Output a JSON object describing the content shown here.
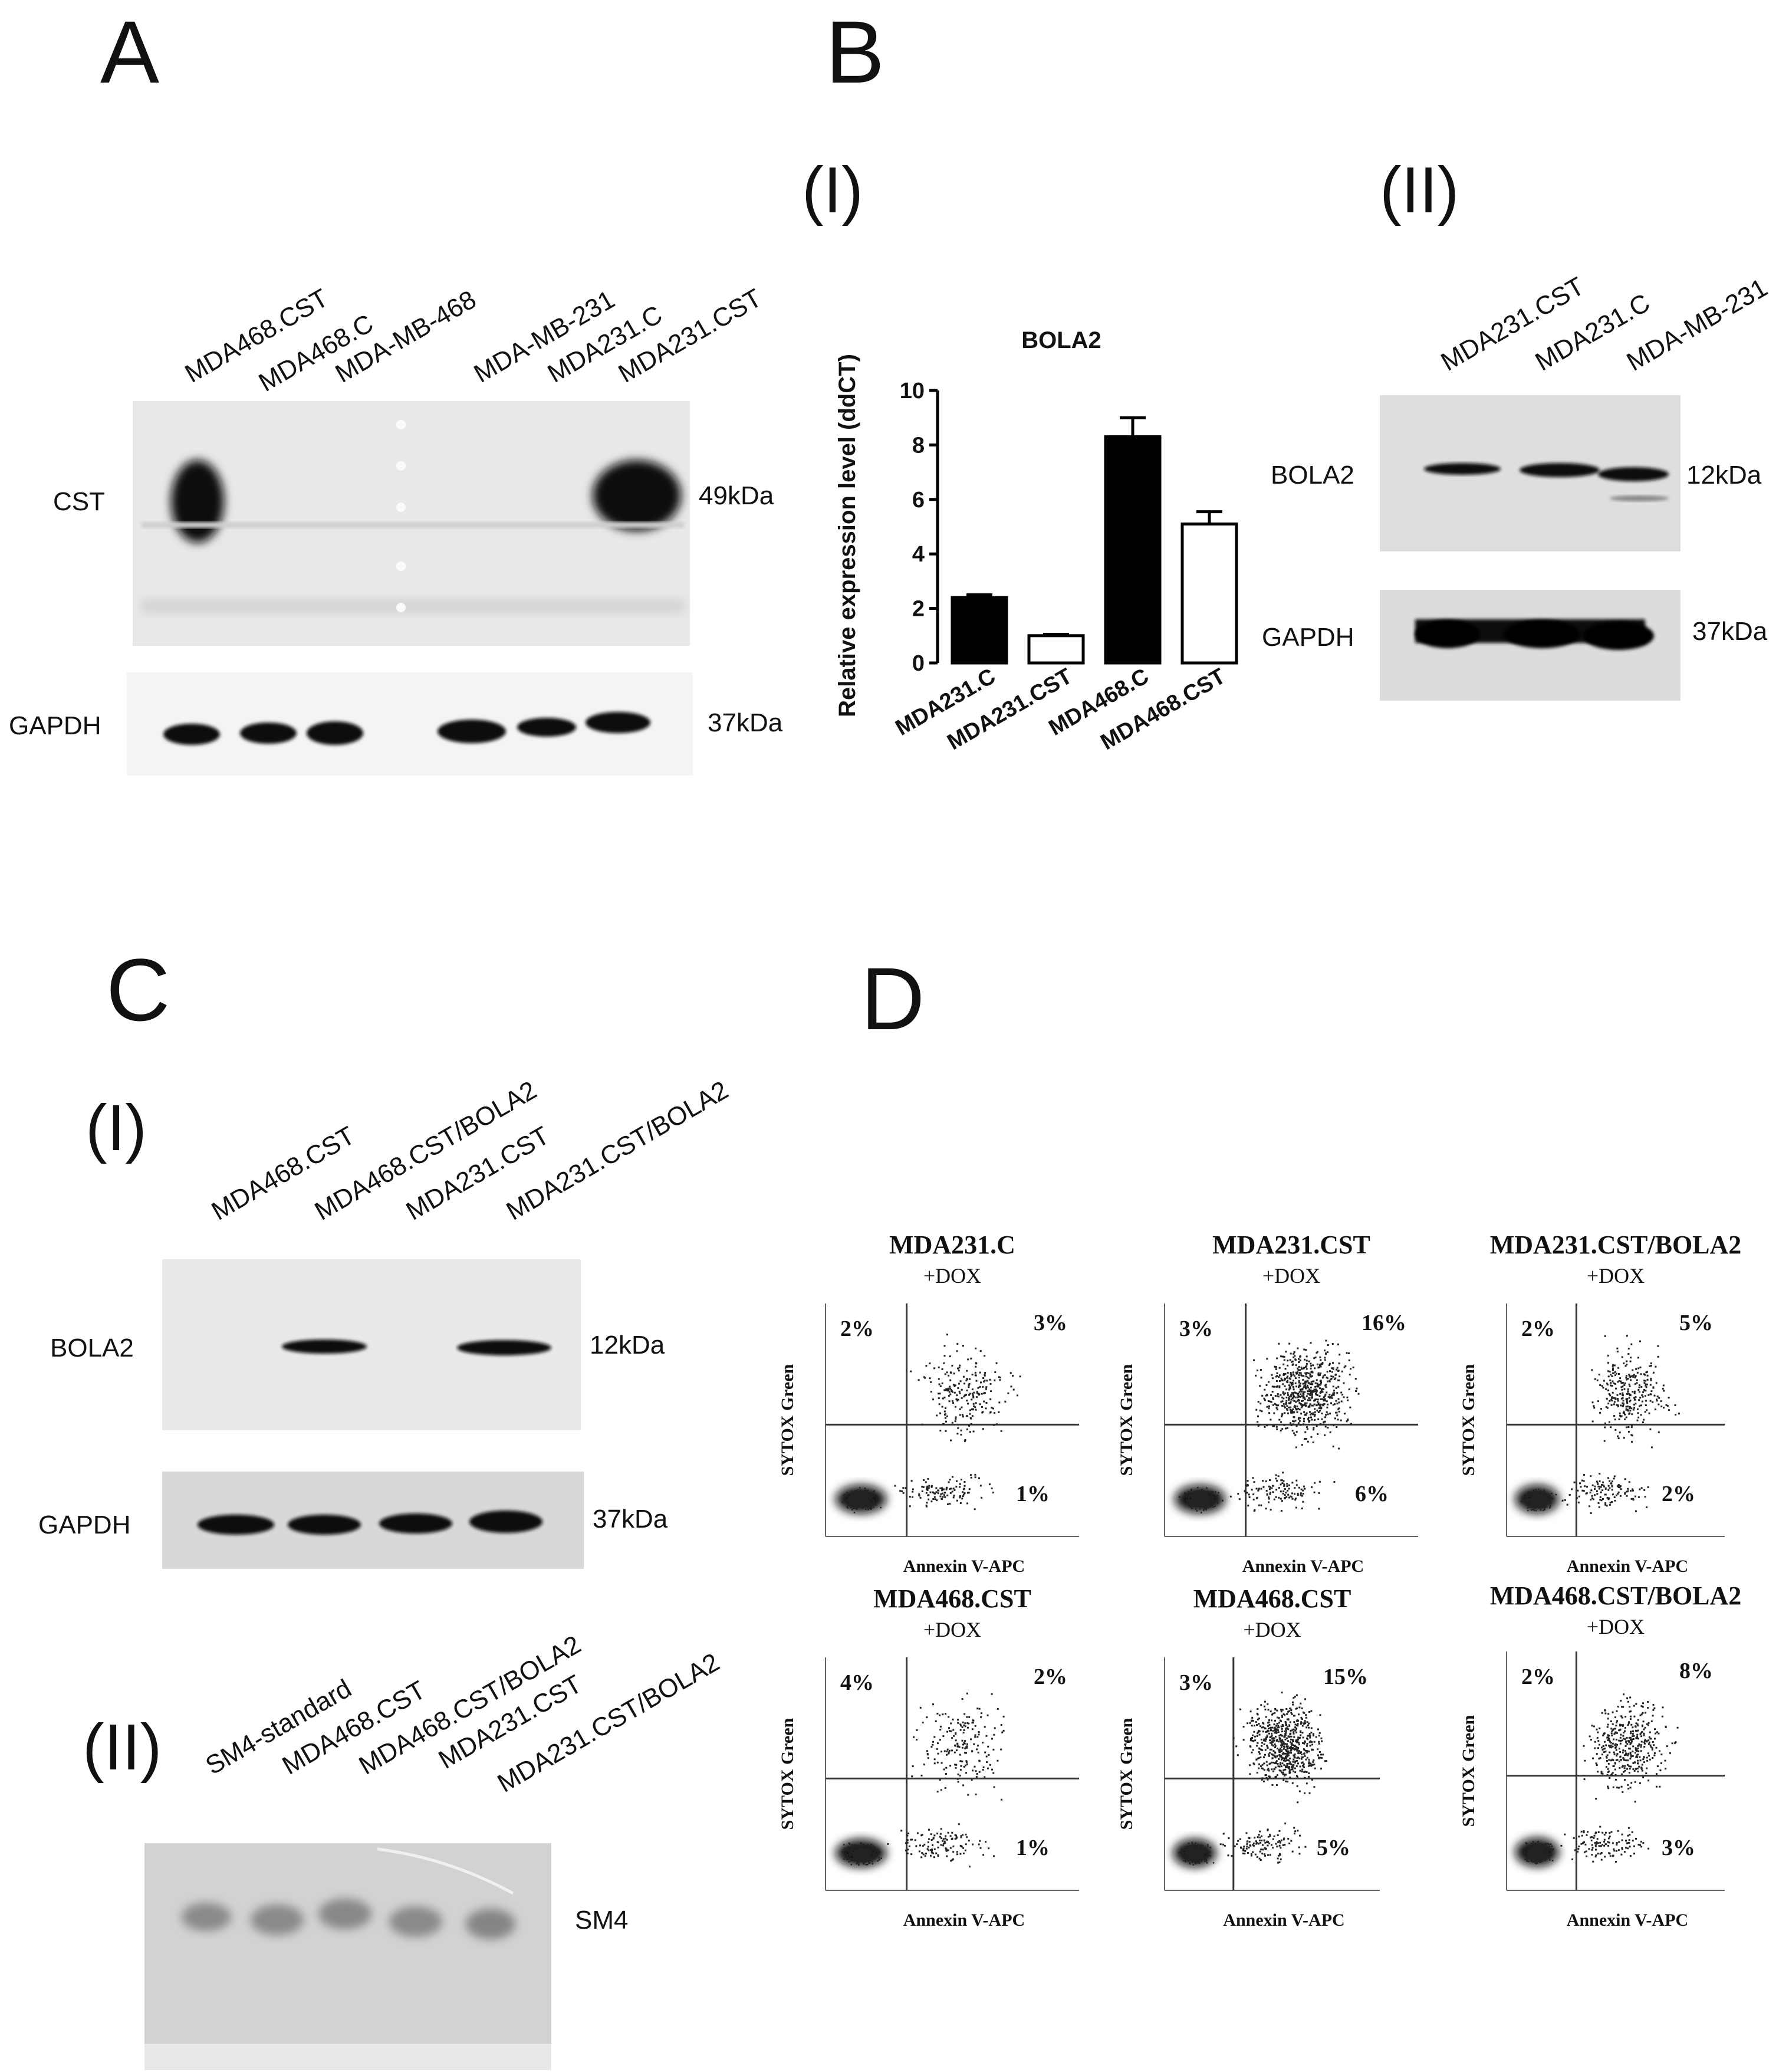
{
  "panels": {
    "a": {
      "letter": "A",
      "lanes": [
        "MDA468.CST",
        "MDA468.C",
        "MDA-MB-468",
        "MDA-MB-231",
        "MDA231.C",
        "MDA231.CST"
      ],
      "blot1_label": "CST",
      "blot1_size": "49kDa",
      "blot2_label": "GAPDH",
      "blot2_size": "37kDa"
    },
    "b": {
      "letter": "B",
      "sub1": "(I)",
      "sub2": "(II)",
      "lanes": [
        "MDA231.CST",
        "MDA231.C",
        "MDA-MB-231"
      ],
      "blot1_label": "BOLA2",
      "blot1_size": "12kDa",
      "blot2_label": "GAPDH",
      "blot2_size": "37kDa"
    },
    "c": {
      "letter": "C",
      "sub1": "(I)",
      "sub2": "(II)",
      "lanes1": [
        "MDA468.CST",
        "MDA468.CST/BOLA2",
        "MDA231.CST",
        "MDA231.CST/BOLA2"
      ],
      "blot1_label": "BOLA2",
      "blot1_size": "12kDa",
      "blot2_label": "GAPDH",
      "blot2_size": "37kDa",
      "lanes2": [
        "SM4-standard",
        "MDA468.CST",
        "MDA468.CST/BOLA2",
        "MDA231.CST",
        "MDA231.CST/BOLA2"
      ],
      "gel_label": "SM4"
    },
    "d": {
      "letter": "D",
      "x_label": "Annexin V-APC",
      "y_label": "SYTOX Green",
      "plots": [
        {
          "title": "MDA231.C",
          "treatment": "+DOX",
          "ul": "2%",
          "ur": "3%",
          "lr": "1%"
        },
        {
          "title": "MDA231.CST",
          "treatment": "+DOX",
          "ul": "3%",
          "ur": "16%",
          "lr": "6%"
        },
        {
          "title": "MDA231.CST/BOLA2",
          "treatment": "+DOX",
          "ul": "2%",
          "ur": "5%",
          "lr": "2%"
        },
        {
          "title": "MDA468.CST",
          "treatment": "+DOX",
          "ul": "4%",
          "ur": "2%",
          "lr": "1%"
        },
        {
          "title": "MDA468.CST",
          "treatment": "+DOX",
          "ul": "3%",
          "ur": "15%",
          "lr": "5%"
        },
        {
          "title": "MDA468.CST/BOLA2",
          "treatment": "+DOX",
          "ul": "2%",
          "ur": "8%",
          "lr": "3%"
        }
      ]
    }
  },
  "chart_data": {
    "type": "bar",
    "title": "BOLA2",
    "ylabel": "Relative expression level (ddCT)",
    "xlabel": "",
    "categories": [
      "MDA231.C",
      "MDA231.CST",
      "MDA468.C",
      "MDA468.CST"
    ],
    "values": [
      2.4,
      1.0,
      8.3,
      5.1
    ],
    "errors": [
      0.1,
      0.05,
      0.7,
      0.45
    ],
    "fills": [
      "#000000",
      "#ffffff",
      "#000000",
      "#ffffff"
    ],
    "ylim": [
      0,
      10
    ],
    "yticks": [
      "0",
      "2",
      "4",
      "6",
      "8",
      "10"
    ],
    "grid": false
  }
}
